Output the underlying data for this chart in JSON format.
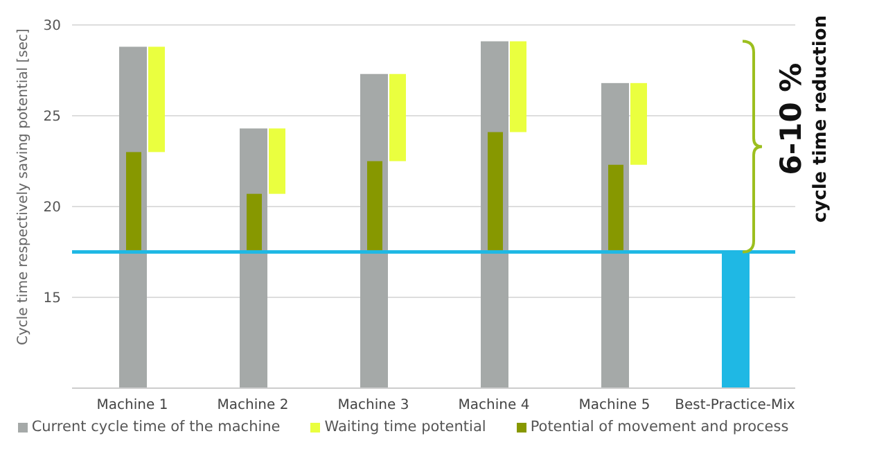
{
  "chart_data": {
    "type": "bar",
    "ylabel": "Cycle time respectively saving potential [sec]",
    "categories": [
      "Machine 1",
      "Machine 2",
      "Machine 3",
      "Machine 4",
      "Machine 5",
      "Best-Practice-Mix"
    ],
    "series": [
      {
        "name": "Current cycle time of the machine",
        "color": "#a5a9a8",
        "colors": [
          "#a5a9a8",
          "#a5a9a8",
          "#a5a9a8",
          "#a5a9a8",
          "#a5a9a8",
          "#1fb8e4"
        ],
        "values": [
          28.8,
          24.3,
          27.3,
          29.1,
          26.8,
          17.5
        ]
      },
      {
        "name": "Waiting time potential",
        "color": "#eaff3f",
        "base": [
          23.0,
          20.7,
          22.5,
          24.1,
          22.3,
          null
        ],
        "values": [
          5.8,
          3.6,
          4.8,
          5.0,
          4.5,
          null
        ]
      },
      {
        "name": "Potential of movement and process",
        "color": "#879800",
        "base": [
          17.5,
          17.5,
          17.5,
          17.5,
          17.5,
          null
        ],
        "values": [
          5.5,
          3.2,
          5.0,
          6.6,
          4.8,
          null
        ]
      }
    ],
    "ylim": [
      10,
      30
    ],
    "yticks": [
      15,
      20,
      25,
      30
    ],
    "grid": "y",
    "legend": "bottom",
    "ref_lines": [
      {
        "axis": "y",
        "value": 17.5,
        "color": "#1fb8e4"
      }
    ],
    "annotations": [
      "6-10 %",
      "cycle time reduction"
    ]
  }
}
